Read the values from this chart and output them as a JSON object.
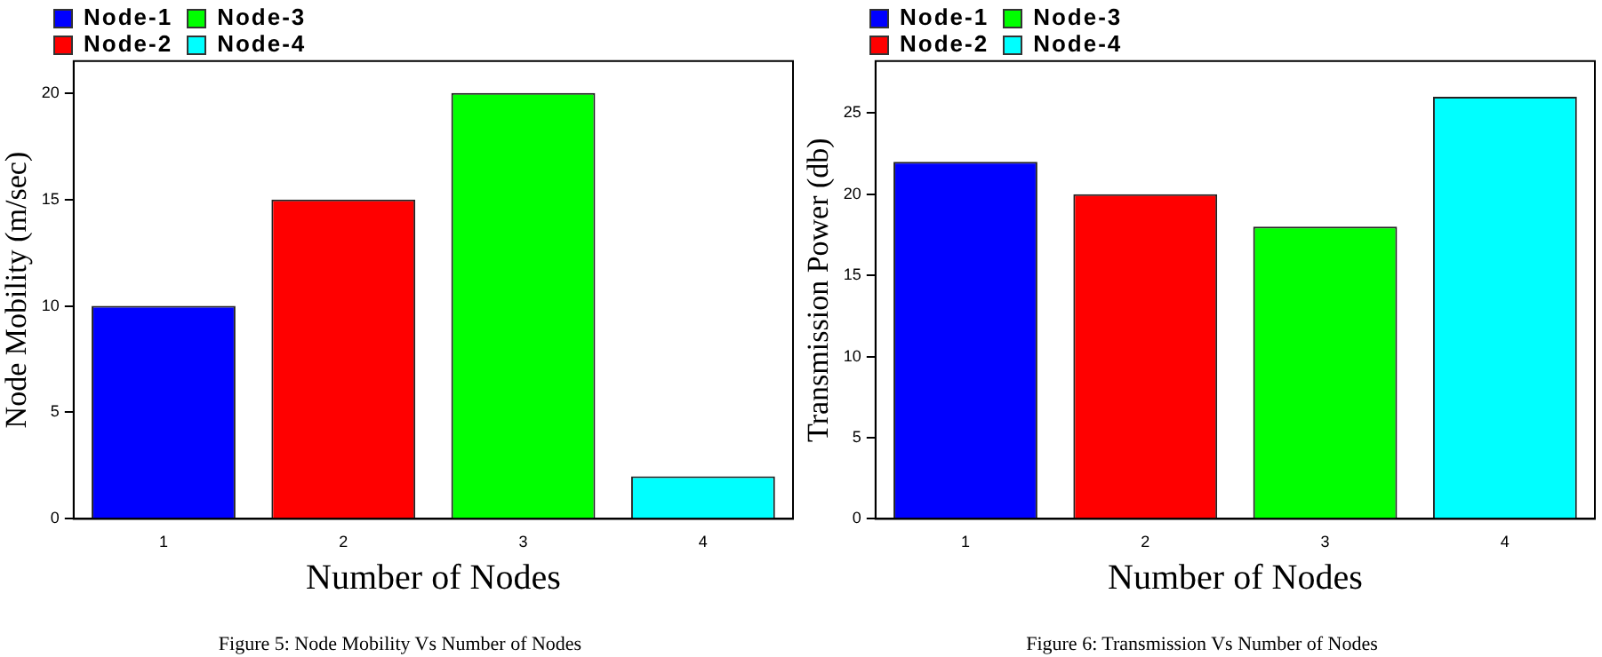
{
  "chart_data": [
    {
      "type": "bar",
      "xlabel": "Number of Nodes",
      "ylabel": "Node Mobility (m/sec)",
      "categories": [
        "1",
        "2",
        "3",
        "4"
      ],
      "series": [
        {
          "name": "Node-1",
          "color": "#0000ff",
          "values": [
            10,
            null,
            null,
            null
          ]
        },
        {
          "name": "Node-2",
          "color": "#ff0000",
          "values": [
            null,
            15,
            null,
            null
          ]
        },
        {
          "name": "Node-3",
          "color": "#00ff00",
          "values": [
            null,
            null,
            20,
            null
          ]
        },
        {
          "name": "Node-4",
          "color": "#00ffff",
          "values": [
            null,
            null,
            null,
            2
          ]
        }
      ],
      "ylim": [
        0,
        21.5
      ],
      "yticks": [
        0,
        5,
        10,
        15,
        20
      ],
      "legend": "top left",
      "annotations": [
        "Figure 5: Node Mobility Vs Number of Nodes"
      ]
    },
    {
      "type": "bar",
      "xlabel": "Number of Nodes",
      "ylabel": "Transmission Power (db)",
      "categories": [
        "1",
        "2",
        "3",
        "4"
      ],
      "series": [
        {
          "name": "Node-1",
          "color": "#0000ff",
          "values": [
            22,
            null,
            null,
            null
          ]
        },
        {
          "name": "Node-2",
          "color": "#ff0000",
          "values": [
            null,
            20,
            null,
            null
          ]
        },
        {
          "name": "Node-3",
          "color": "#00ff00",
          "values": [
            null,
            null,
            18,
            null
          ]
        },
        {
          "name": "Node-4",
          "color": "#00ffff",
          "values": [
            null,
            null,
            null,
            26
          ]
        }
      ],
      "ylim": [
        0,
        28.2
      ],
      "yticks": [
        0,
        5,
        10,
        15,
        20,
        25
      ],
      "legend": "top left",
      "annotations": [
        "Figure 6: Transmission Vs Number of Nodes"
      ]
    }
  ]
}
